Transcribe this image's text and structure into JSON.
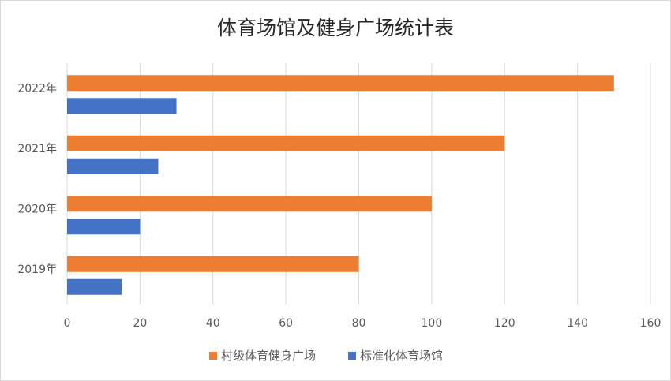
{
  "chart_data": {
    "type": "bar",
    "orientation": "horizontal",
    "title": "体育场馆及健身广场统计表",
    "categories": [
      "2019年",
      "2020年",
      "2021年",
      "2022年"
    ],
    "series": [
      {
        "name": "村级体育健身广场",
        "color": "#ED7D31",
        "values": [
          80,
          100,
          120,
          150
        ]
      },
      {
        "name": "标准化体育场馆",
        "color": "#4472C4",
        "values": [
          15,
          20,
          25,
          30
        ]
      }
    ],
    "xlim": [
      0,
      160
    ],
    "xticks": [
      0,
      20,
      40,
      60,
      80,
      100,
      120,
      140,
      160
    ],
    "grid": true,
    "legend_position": "bottom"
  }
}
